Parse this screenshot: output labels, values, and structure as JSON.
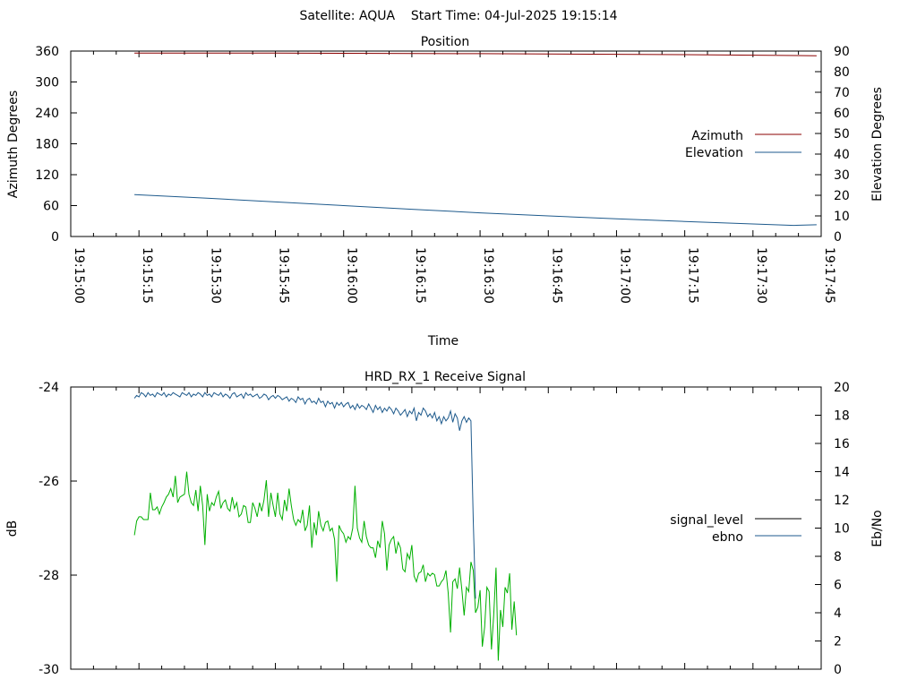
{
  "header": {
    "title": "Satellite: AQUA    Start Time: 04-Jul-2025 19:15:14"
  },
  "chart_data": [
    {
      "type": "line",
      "title": "Position",
      "xlabel": "Time",
      "ylabel": "Azimuth Degrees",
      "y2label": "Elevation Degrees",
      "xlim_seconds": [
        0,
        165
      ],
      "x_ticks": [
        "19:15:00",
        "19:15:15",
        "19:15:30",
        "19:15:45",
        "19:16:00",
        "19:16:15",
        "19:16:30",
        "19:16:45",
        "19:17:00",
        "19:17:15",
        "19:17:30",
        "19:17:45"
      ],
      "ylim": [
        0,
        360
      ],
      "y_ticks": [
        "0",
        "60",
        "120",
        "180",
        "240",
        "300",
        "360"
      ],
      "y2lim": [
        0,
        90
      ],
      "y2_ticks": [
        "0",
        "10",
        "20",
        "30",
        "40",
        "50",
        "60",
        "70",
        "80",
        "90"
      ],
      "legend_position": "right",
      "series": [
        {
          "name": "Azimuth",
          "axis": "left",
          "color": "#8b0000",
          "x": [
            "19:15:14",
            "19:15:45",
            "19:16:30",
            "19:17:15",
            "19:17:44"
          ],
          "y": [
            356,
            356,
            355,
            353,
            351
          ]
        },
        {
          "name": "Elevation",
          "axis": "right",
          "color": "#1e5a8c",
          "x": [
            "19:15:14",
            "19:15:30",
            "19:15:45",
            "19:16:00",
            "19:16:15",
            "19:16:30",
            "19:16:45",
            "19:17:00",
            "19:17:15",
            "19:17:30",
            "19:17:39",
            "19:17:44"
          ],
          "y": [
            20.3,
            18.6,
            16.8,
            15.0,
            13.2,
            11.5,
            10.0,
            8.6,
            7.3,
            6.1,
            5.4,
            5.7
          ]
        }
      ]
    },
    {
      "type": "line",
      "title": "HRD_RX_1 Receive Signal",
      "xlabel": "",
      "ylabel": "dB",
      "y2label": "Eb/No",
      "xlim_seconds": [
        0,
        165
      ],
      "ylim": [
        -30,
        -24
      ],
      "y_ticks": [
        "-24",
        "-26",
        "-28",
        "-30"
      ],
      "y2lim": [
        0,
        20
      ],
      "y2_ticks": [
        "0",
        "2",
        "4",
        "6",
        "8",
        "10",
        "12",
        "14",
        "16",
        "18",
        "20"
      ],
      "legend_position": "right",
      "series": [
        {
          "name": "signal_level",
          "axis": "left",
          "color": "#000000",
          "x": [],
          "y": []
        },
        {
          "name": "ebno",
          "axis": "right",
          "color": "#1e5a8c",
          "start_time": "19:15:14",
          "step_seconds": 0.5,
          "y": [
            19.2,
            19.4,
            19.3,
            19.6,
            19.5,
            19.3,
            19.6,
            19.4,
            19.5,
            19.3,
            19.6,
            19.5,
            19.4,
            19.6,
            19.3,
            19.5,
            19.4,
            19.6,
            19.5,
            19.4,
            19.3,
            19.6,
            19.5,
            19.4,
            19.6,
            19.3,
            19.5,
            19.4,
            19.6,
            19.5,
            19.3,
            19.6,
            19.4,
            19.5,
            19.3,
            19.6,
            19.5,
            19.4,
            19.6,
            19.3,
            19.5,
            19.4,
            19.2,
            19.5,
            19.6,
            19.3,
            19.4,
            19.5,
            19.2,
            19.6,
            19.4,
            19.5,
            19.3,
            19.4,
            19.5,
            19.2,
            19.3,
            19.5,
            19.4,
            19.1,
            19.3,
            19.4,
            19.2,
            19.4,
            19.3,
            19.1,
            19.2,
            19.3,
            19.0,
            19.2,
            19.1,
            18.9,
            19.3,
            19.1,
            19.2,
            18.8,
            19.1,
            19.2,
            18.9,
            19.0,
            18.8,
            19.2,
            18.9,
            19.0,
            18.6,
            19.0,
            18.8,
            18.9,
            18.5,
            18.9,
            18.7,
            18.9,
            18.6,
            18.8,
            18.9,
            18.5,
            18.7,
            18.4,
            18.8,
            18.5,
            18.7,
            18.6,
            18.4,
            18.8,
            18.5,
            18.2,
            18.7,
            18.4,
            18.6,
            18.2,
            18.5,
            18.3,
            18.6,
            18.4,
            18.1,
            18.5,
            18.3,
            18.0,
            18.2,
            18.4,
            17.9,
            18.3,
            18.1,
            18.5,
            17.6,
            18.2,
            18.0,
            18.5,
            18.3,
            17.9,
            18.1,
            17.8,
            18.2,
            17.6,
            17.9,
            17.4,
            17.9,
            17.6,
            17.8,
            18.3,
            17.5,
            18.1,
            17.8,
            16.9,
            17.6,
            17.9,
            17.5,
            17.8,
            17.6,
            10.5,
            5.0
          ]
        },
        {
          "name": "",
          "axis": "right",
          "color": "#00b000",
          "start_time": "19:15:14",
          "step_seconds": 0.5,
          "y": [
            9.5,
            10.5,
            10.8,
            10.8,
            10.6,
            10.6,
            10.6,
            12.5,
            11.3,
            11.3,
            11.5,
            11.0,
            11.5,
            11.8,
            12.2,
            12.4,
            12.8,
            12.2,
            13.7,
            11.8,
            12.2,
            12.3,
            12.4,
            14.0,
            12.4,
            11.8,
            11.6,
            12.7,
            11.2,
            13.0,
            11.6,
            8.8,
            12.4,
            11.2,
            11.8,
            11.6,
            12.2,
            12.6,
            11.4,
            11.8,
            12.0,
            11.4,
            11.2,
            12.2,
            11.4,
            11.8,
            10.8,
            11.0,
            11.6,
            11.5,
            10.4,
            10.4,
            11.8,
            11.4,
            10.8,
            11.8,
            11.2,
            12.0,
            13.4,
            10.8,
            12.5,
            11.6,
            10.8,
            12.5,
            11.0,
            10.6,
            12.0,
            11.2,
            12.8,
            11.6,
            10.6,
            10.2,
            10.6,
            10.4,
            11.3,
            9.8,
            10.2,
            11.6,
            8.6,
            10.4,
            9.5,
            11.2,
            10.2,
            9.8,
            10.4,
            10.5,
            9.8,
            10.0,
            9.2,
            6.2,
            10.2,
            9.8,
            9.6,
            9.0,
            9.4,
            9.2,
            10.0,
            13.0,
            10.0,
            9.3,
            9.0,
            10.5,
            9.4,
            8.8,
            8.6,
            8.6,
            7.9,
            9.1,
            8.6,
            10.5,
            9.6,
            7.0,
            8.8,
            9.2,
            9.4,
            8.2,
            9.0,
            8.6,
            7.1,
            6.9,
            8.2,
            7.8,
            8.8,
            6.6,
            6.2,
            6.8,
            6.9,
            7.4,
            6.2,
            6.8,
            6.6,
            6.8,
            6.7,
            5.9,
            5.9,
            6.2,
            6.4,
            7.0,
            5.4,
            2.6,
            6.2,
            6.4,
            5.7,
            7.2,
            5.6,
            3.8,
            5.8,
            5.5,
            7.6,
            7.0,
            4.0,
            4.4,
            5.6,
            1.6,
            3.0,
            5.8,
            5.5,
            1.4,
            3.8,
            7.2,
            0.6,
            4.2,
            3.0,
            5.8,
            5.4,
            6.8,
            2.8,
            4.8,
            2.4
          ]
        }
      ]
    }
  ]
}
